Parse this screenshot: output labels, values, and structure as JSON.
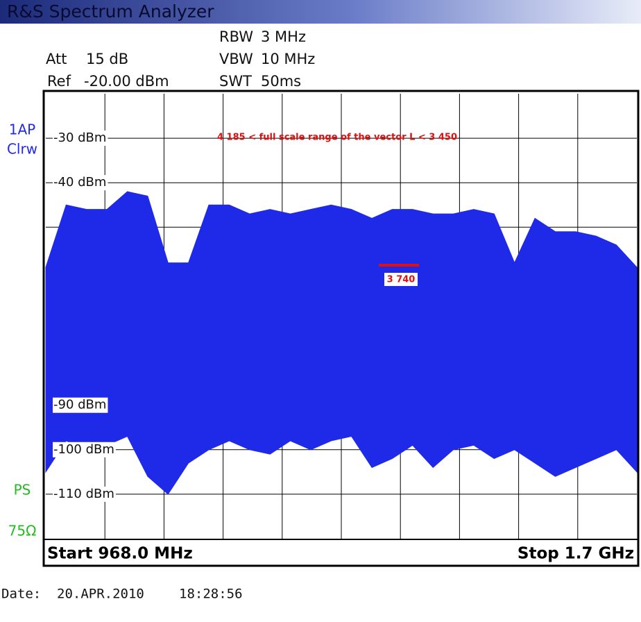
{
  "header": {
    "title": "R&S Spectrum Analyzer"
  },
  "settings": {
    "att_label": "Att",
    "att": "15 dB",
    "ref_label": "Ref",
    "ref": "-20.00 dBm",
    "rbw_label": "RBW",
    "rbw": "3 MHz",
    "vbw_label": "VBW",
    "vbw": "10 MHz",
    "swt_label": "SWT",
    "swt": "50ms"
  },
  "side": {
    "trace": "1AP",
    "mode": "Clrw",
    "ps": "PS",
    "impedance": "75Ω"
  },
  "footer": {
    "start": "Start 968.0 MHz",
    "stop": "Stop 1.7 GHz",
    "date_label": "Date:",
    "date": "20.APR.2010",
    "time": "18:28:56"
  },
  "chart_data": {
    "type": "band",
    "xlim": [
      968,
      1700
    ],
    "ylim": [
      -120,
      -20
    ],
    "xgrid_divisions": 10,
    "ygrid": [
      -30,
      -40,
      -50,
      -60,
      -70,
      -80,
      -90,
      -100,
      -110
    ],
    "yticks": [
      {
        "value": -30,
        "label": "-30 dBm"
      },
      {
        "value": -40,
        "label": "-40 dBm"
      },
      {
        "value": -90,
        "label": "-90 dBm"
      },
      {
        "value": -100,
        "label": "-100 dBm"
      },
      {
        "value": -110,
        "label": "-110 dBm"
      }
    ],
    "x": [
      968,
      993.2,
      1018.5,
      1043.7,
      1069.0,
      1094.2,
      1119.4,
      1144.7,
      1169.9,
      1195.2,
      1220.4,
      1245.7,
      1270.9,
      1296.1,
      1321.4,
      1346.6,
      1371.9,
      1397.1,
      1422.3,
      1447.6,
      1472.8,
      1498.0,
      1523.3,
      1548.5,
      1573.8,
      1599.0,
      1624.3,
      1649.5,
      1674.7,
      1700
    ],
    "series": [
      {
        "color": "#1f2ae8",
        "values": [
          -59,
          -45,
          -46,
          -46,
          -42,
          -43,
          -58,
          -58,
          -45,
          -45,
          -47,
          -46,
          -47,
          -46,
          -45,
          -46,
          -48,
          -46,
          -46,
          -47,
          -47,
          -46,
          -47,
          -58,
          -48,
          -51,
          -51,
          -52,
          -54,
          -59
        ]
      },
      {
        "color": "#1f2ae8",
        "values": [
          -105,
          -98,
          -100,
          -99,
          -97,
          -106,
          -110,
          -103,
          -100,
          -98,
          -100,
          -101,
          -98,
          -100,
          -98,
          -97,
          -104,
          -102,
          -99,
          -104,
          -100,
          -99,
          -102,
          -100,
          -103,
          -106,
          -104,
          -102,
          -100,
          -105
        ]
      }
    ],
    "annotations": [
      {
        "text": "4 185 < full scale range of the vector L < 3 450"
      },
      {
        "text": "3 740"
      }
    ]
  }
}
